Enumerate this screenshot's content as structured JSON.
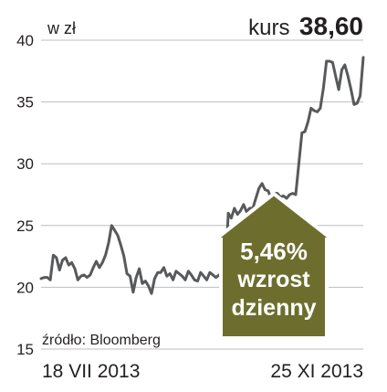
{
  "chart_data": {
    "type": "line",
    "unit_label": "w zł",
    "price": {
      "label": "kurs",
      "value": "38,60"
    },
    "ylim": [
      15,
      40
    ],
    "yticks": [
      "15",
      "20",
      "25",
      "30",
      "35",
      "40"
    ],
    "xlabels": [
      "18 VII 2013",
      "25 XI 2013"
    ],
    "source": "źródło: Bloomberg",
    "grid": true,
    "series": [
      {
        "color": "#58595b",
        "values": [
          20.7,
          20.8,
          20.8,
          20.6,
          22.6,
          22.4,
          21.4,
          22.2,
          22.4,
          21.8,
          22.0,
          21.5,
          20.6,
          20.9,
          21.0,
          20.8,
          21.0,
          21.6,
          22.1,
          21.6,
          22.0,
          22.6,
          23.6,
          25.0,
          24.6,
          24.2,
          23.4,
          22.5,
          21.1,
          20.9,
          19.6,
          20.8,
          21.5,
          20.3,
          20.5,
          20.1,
          19.5,
          20.7,
          21.2,
          21.2,
          21.6,
          20.9,
          21.1,
          20.6,
          21.3,
          21.1,
          20.9,
          20.6,
          21.3,
          21.0,
          20.6,
          20.5,
          21.2,
          20.9,
          20.6,
          21.2,
          21.0,
          20.8,
          21.0,
          20.9,
          21.1,
          26.0,
          25.6,
          26.4,
          25.9,
          26.2,
          26.7,
          26.1,
          26.4,
          26.4,
          27.2,
          28.0,
          28.4,
          27.9,
          27.8,
          27.2,
          27.6,
          27.6,
          27.3,
          27.4,
          27.2,
          27.5,
          27.6,
          27.5,
          30.0,
          32.5,
          32.6,
          33.4,
          34.5,
          34.3,
          34.2,
          34.5,
          36.1,
          38.3,
          38.3,
          38.2,
          37.1,
          36.0,
          37.6,
          38.0,
          37.1,
          36.0,
          34.8,
          34.9,
          35.5,
          38.6
        ]
      }
    ],
    "badge": {
      "color": "#6d6e2e",
      "lines": [
        "5,46%",
        "wzrost",
        "dzienny"
      ]
    }
  }
}
